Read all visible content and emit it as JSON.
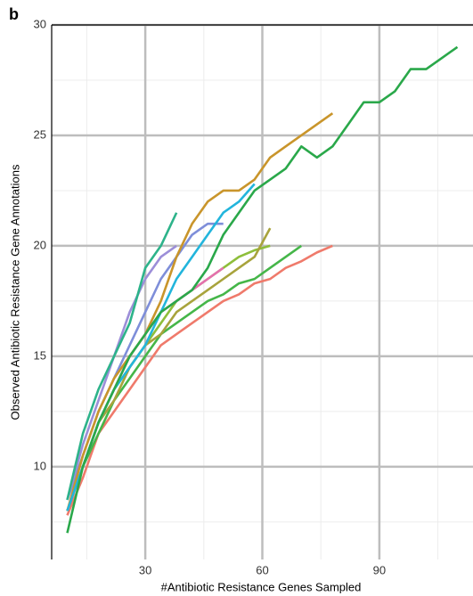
{
  "chart_data": {
    "type": "line",
    "panel_label": "b",
    "x_label": "#Antibiotic Resistance Genes Sampled",
    "y_label": "Observed Antibiotic Resistance Gene Annotations",
    "xlim": [
      6,
      114
    ],
    "ylim": [
      5.8,
      30
    ],
    "xticks": [
      30,
      60,
      90
    ],
    "yticks": [
      10,
      15,
      20,
      25,
      30
    ],
    "x_minor_ticks": [
      15,
      45,
      75,
      105
    ],
    "y_minor_ticks": [
      7.5,
      12.5,
      17.5,
      22.5,
      27.5
    ],
    "grid": true,
    "x": [
      10,
      14,
      18,
      22,
      26,
      30,
      34,
      38,
      42,
      46,
      50,
      54,
      58,
      62,
      66,
      70,
      74,
      78,
      82,
      86,
      90,
      94,
      98,
      102,
      106,
      110
    ],
    "series": [
      {
        "color": "#ef7a6b",
        "values": [
          7.8,
          9.5,
          11.5,
          12.5,
          13.5,
          14.5,
          15.5,
          16,
          16.5,
          17,
          17.5,
          17.8,
          18.3,
          18.5,
          19,
          19.3,
          19.7,
          20,
          null,
          null,
          null,
          null,
          null,
          null,
          null,
          null
        ]
      },
      {
        "color": "#45b649",
        "values": [
          8,
          10,
          11.5,
          13,
          14,
          15,
          16,
          16.5,
          17,
          17.5,
          17.8,
          18.3,
          18.5,
          19,
          19.5,
          20,
          null,
          null,
          null,
          null,
          null,
          null,
          null,
          null,
          null,
          null
        ]
      },
      {
        "color": "#8ebe3a",
        "values": [
          8,
          10,
          12,
          13.5,
          14.5,
          15.5,
          16.5,
          17.5,
          18,
          18.5,
          19,
          19.5,
          19.8,
          20,
          null,
          null,
          null,
          null,
          null,
          null,
          null,
          null,
          null,
          null,
          null,
          null
        ]
      },
      {
        "color": "#a8a33c",
        "values": [
          8,
          10,
          12,
          13,
          14.5,
          15.5,
          16,
          17,
          17.5,
          18,
          18.5,
          19,
          19.5,
          20.8,
          null,
          null,
          null,
          null,
          null,
          null,
          null,
          null,
          null,
          null,
          null,
          null
        ]
      },
      {
        "color": "#e56fae",
        "values": [
          8,
          10,
          12,
          13.5,
          15,
          16,
          17,
          17.5,
          18,
          18.5,
          19,
          null,
          null,
          null,
          null,
          null,
          null,
          null,
          null,
          null,
          null,
          null,
          null,
          null,
          null,
          null
        ]
      },
      {
        "color": "#7e8ed9",
        "values": [
          8.5,
          10.5,
          12.5,
          14,
          15.5,
          17,
          18.5,
          19.5,
          20.5,
          21,
          21,
          null,
          null,
          null,
          null,
          null,
          null,
          null,
          null,
          null,
          null,
          null,
          null,
          null,
          null,
          null
        ]
      },
      {
        "color": "#9c8ed8",
        "values": [
          8.5,
          11,
          13,
          15,
          17,
          18.5,
          19.5,
          20,
          null,
          null,
          null,
          null,
          null,
          null,
          null,
          null,
          null,
          null,
          null,
          null,
          null,
          null,
          null,
          null,
          null,
          null
        ]
      },
      {
        "color": "#c9952b",
        "values": [
          8,
          10.5,
          12.5,
          14,
          15,
          16,
          17.5,
          19.5,
          21,
          22,
          22.5,
          22.5,
          23,
          24,
          24.5,
          25,
          25.5,
          26,
          null,
          null,
          null,
          null,
          null,
          null,
          null,
          null
        ]
      },
      {
        "color": "#22b5dc",
        "values": [
          8,
          10,
          12,
          13.5,
          14.5,
          15.5,
          17,
          18.5,
          19.5,
          20.5,
          21.5,
          22,
          22.8,
          null,
          null,
          null,
          null,
          null,
          null,
          null,
          null,
          null,
          null,
          null,
          null,
          null
        ]
      },
      {
        "color": "#2db38a",
        "values": [
          8.5,
          11.5,
          13.5,
          15,
          16.5,
          19,
          20,
          21.5,
          null,
          null,
          null,
          null,
          null,
          null,
          null,
          null,
          null,
          null,
          null,
          null,
          null,
          null,
          null,
          null,
          null,
          null
        ]
      },
      {
        "color": "#2aa84a",
        "values": [
          7,
          10,
          12,
          13.5,
          15,
          16,
          17,
          17.5,
          18,
          19,
          20.5,
          21.5,
          22.5,
          23,
          23.5,
          24.5,
          24,
          24.5,
          25.5,
          26.5,
          26.5,
          27,
          28,
          28,
          28.5,
          29
        ]
      }
    ]
  }
}
